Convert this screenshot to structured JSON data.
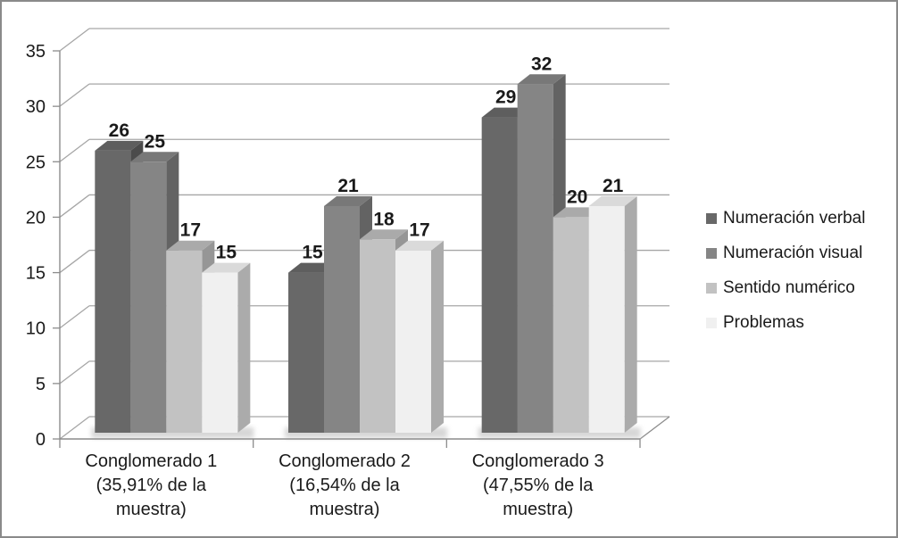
{
  "frame": {
    "background": "#ffffff",
    "border_color": "#8a8a8a"
  },
  "chart_data": {
    "type": "bar",
    "variant": "3d-clustered-column",
    "title": "",
    "xlabel": "",
    "ylabel": "",
    "ylim": [
      0,
      35
    ],
    "ytick_step": 5,
    "y_ticks": [
      0,
      5,
      10,
      15,
      20,
      25,
      30,
      35
    ],
    "grid": true,
    "legend_position": "right",
    "data_labels": true,
    "categories": [
      [
        "Conglomerado 1",
        "(35,91% de la",
        "muestra)"
      ],
      [
        "Conglomerado 2",
        "(16,54% de la",
        "muestra)"
      ],
      [
        "Conglomerado 3",
        "(47,55% de la",
        "muestra)"
      ]
    ],
    "series": [
      {
        "name": "Numeración verbal",
        "values": [
          26,
          15,
          29
        ],
        "color": "#686868",
        "top_color": "#5e5e5e",
        "side_color": "#4b4b4b"
      },
      {
        "name": "Numeración visual",
        "values": [
          25,
          21,
          32
        ],
        "color": "#858585",
        "top_color": "#787878",
        "side_color": "#636363"
      },
      {
        "name": "Sentido numérico",
        "values": [
          17,
          18,
          20
        ],
        "color": "#c2c2c2",
        "top_color": "#aaaaaa",
        "side_color": "#969696"
      },
      {
        "name": "Problemas",
        "values": [
          15,
          17,
          21
        ],
        "color": "#f0f0f0",
        "top_color": "#dadada",
        "side_color": "#ababab"
      }
    ],
    "colors": {
      "grid": "#a6a6a6",
      "axis": "#8c8c8c",
      "text": "#1a1a1a",
      "shadow": "#c9c9c9"
    }
  }
}
